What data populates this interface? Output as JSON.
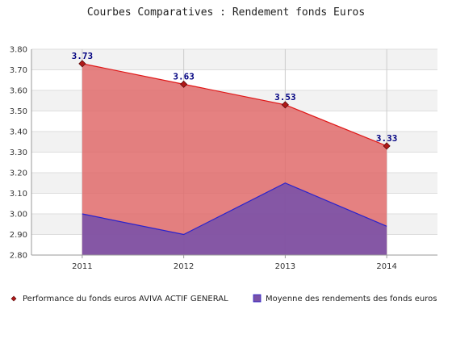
{
  "chart_data": {
    "type": "area",
    "title": "Courbes Comparatives : Rendement fonds Euros",
    "xlabel": "",
    "ylabel": "",
    "categories": [
      "2011",
      "2012",
      "2013",
      "2014"
    ],
    "ylim": [
      2.8,
      3.8
    ],
    "yticks": [
      "2.80",
      "2.90",
      "3.00",
      "3.10",
      "3.20",
      "3.30",
      "3.40",
      "3.50",
      "3.60",
      "3.70",
      "3.80"
    ],
    "grid": true,
    "legend_position": "bottom",
    "series": [
      {
        "name": "Performance du fonds euros AVIVA ACTIF GENERAL",
        "values": [
          3.73,
          3.63,
          3.53,
          3.33
        ],
        "data_labels": [
          "3.73",
          "3.63",
          "3.53",
          "3.33"
        ],
        "fill_color": "#e06b6b",
        "line_color": "#e01818",
        "marker_color": "#b01818"
      },
      {
        "name": "Moyenne des rendements des fonds euros",
        "values": [
          3.0,
          2.9,
          3.15,
          2.94
        ],
        "fill_color": "#7a52a8",
        "line_color": "#2a22cc"
      }
    ]
  }
}
